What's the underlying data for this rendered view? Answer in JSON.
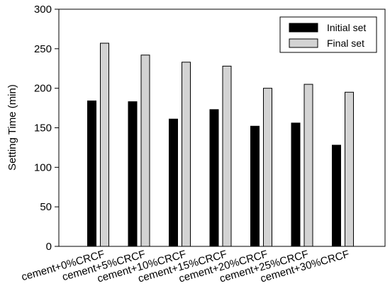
{
  "chart_data": {
    "type": "bar",
    "title": "",
    "xlabel": "",
    "ylabel": "Setting Time (min)",
    "ylim": [
      0,
      300
    ],
    "yticks": [
      0,
      50,
      100,
      150,
      200,
      250,
      300
    ],
    "categories": [
      "cement+0%CRCF",
      "cement+5%CRCF",
      "cement+10%CRCF",
      "cement+15%CRCF",
      "cement+20%CRCF",
      "cement+25%CRCF",
      "cement+30%CRCF"
    ],
    "series": [
      {
        "name": "Initial set",
        "color": "#000000",
        "values": [
          184,
          183,
          161,
          173,
          152,
          156,
          128
        ]
      },
      {
        "name": "Final set",
        "color": "#d3d3d3",
        "values": [
          257,
          242,
          233,
          228,
          200,
          205,
          195
        ]
      }
    ],
    "grid": false,
    "legend_position": "top-right"
  }
}
